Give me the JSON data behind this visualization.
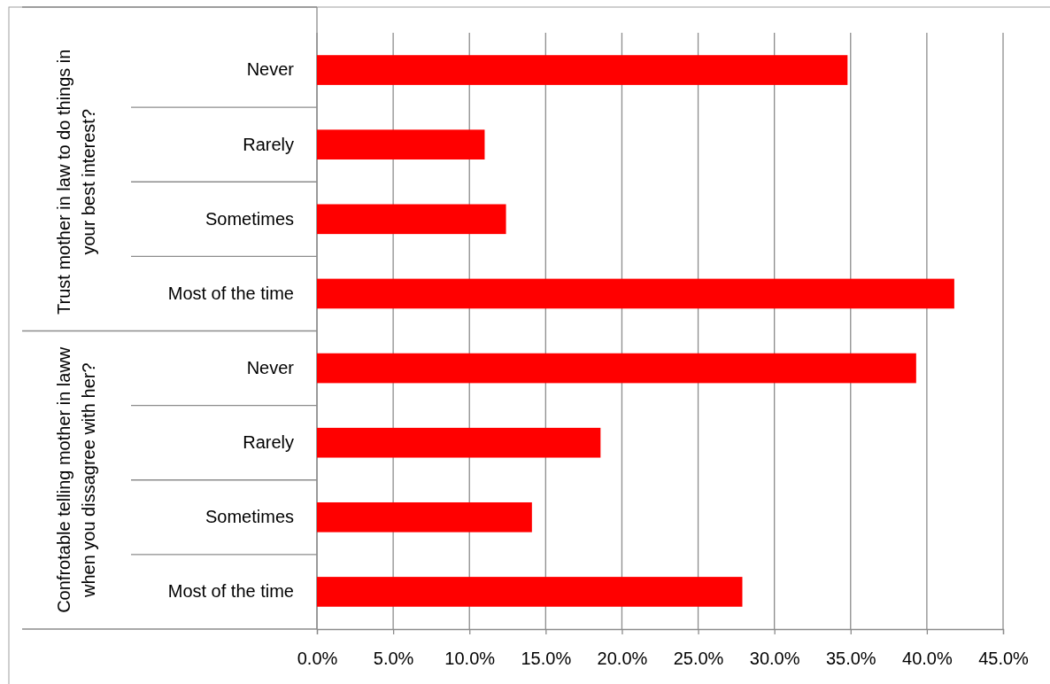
{
  "chart_data": {
    "type": "bar",
    "orientation": "horizontal",
    "categories": [
      "Never",
      "Rarely",
      "Sometimes",
      "Most of the time",
      "Never",
      "Rarely",
      "Sometimes",
      "Most of the time"
    ],
    "values": [
      34.8,
      11.0,
      12.4,
      41.8,
      39.3,
      18.6,
      14.1,
      27.9
    ],
    "color": "#ff0000",
    "xlim": [
      0,
      45
    ],
    "xticks": [
      {
        "value": 0,
        "label": "0.0%"
      },
      {
        "value": 5,
        "label": "5.0%"
      },
      {
        "value": 10,
        "label": "10.0%"
      },
      {
        "value": 15,
        "label": "15.0%"
      },
      {
        "value": 20,
        "label": "20.0%"
      },
      {
        "value": 25,
        "label": "25.0%"
      },
      {
        "value": 30,
        "label": "30.0%"
      },
      {
        "value": 35,
        "label": "35.0%"
      },
      {
        "value": 40,
        "label": "40.0%"
      },
      {
        "value": 45,
        "label": "45.0%"
      }
    ],
    "grid": "x",
    "annotations": [
      "Trust mother in law to do things in your best interest?",
      "Confrotable telling mother in laww when you dissagree with her?"
    ]
  }
}
